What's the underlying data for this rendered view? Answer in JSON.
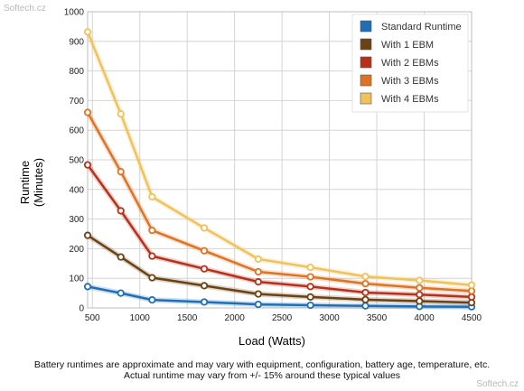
{
  "watermark": "Softech.cz",
  "footnote": {
    "line1": "Battery runtimes are approximate and may vary with equipment, configuration, battery age, temperature, etc.",
    "line2": "Actual runtime may vary from +/- 15% around these typical values"
  },
  "chart_data": {
    "type": "line",
    "title": "",
    "xlabel": "Load (Watts)",
    "ylabel_lines": [
      "Runtime",
      "(Minutes)"
    ],
    "xlim": [
      450,
      4500
    ],
    "ylim": [
      0,
      1000
    ],
    "x_ticks": [
      500,
      1000,
      1500,
      2000,
      2500,
      3000,
      3500,
      4000,
      4500
    ],
    "y_ticks": [
      0,
      100,
      200,
      300,
      400,
      500,
      600,
      700,
      800,
      900,
      1000
    ],
    "grid": true,
    "legend_position": "top-right",
    "x": [
      450,
      800,
      1130,
      1680,
      2250,
      2800,
      3380,
      3950,
      4500
    ],
    "series": [
      {
        "name": "Standard Runtime",
        "color": "#1f6fb8",
        "values": [
          72,
          50,
          27,
          20,
          12,
          9,
          7,
          5,
          4
        ]
      },
      {
        "name": "With 1 EBM",
        "color": "#6b4214",
        "values": [
          245,
          172,
          102,
          75,
          47,
          37,
          28,
          23,
          18
        ]
      },
      {
        "name": "With 2 EBMs",
        "color": "#b8301a",
        "values": [
          483,
          328,
          175,
          132,
          88,
          72,
          52,
          45,
          37
        ]
      },
      {
        "name": "With 3 EBMs",
        "color": "#df7324",
        "values": [
          660,
          460,
          262,
          193,
          122,
          105,
          82,
          68,
          57
        ]
      },
      {
        "name": "With 4 EBMs",
        "color": "#f0c25c",
        "values": [
          932,
          655,
          375,
          270,
          165,
          137,
          106,
          93,
          77
        ]
      }
    ]
  }
}
